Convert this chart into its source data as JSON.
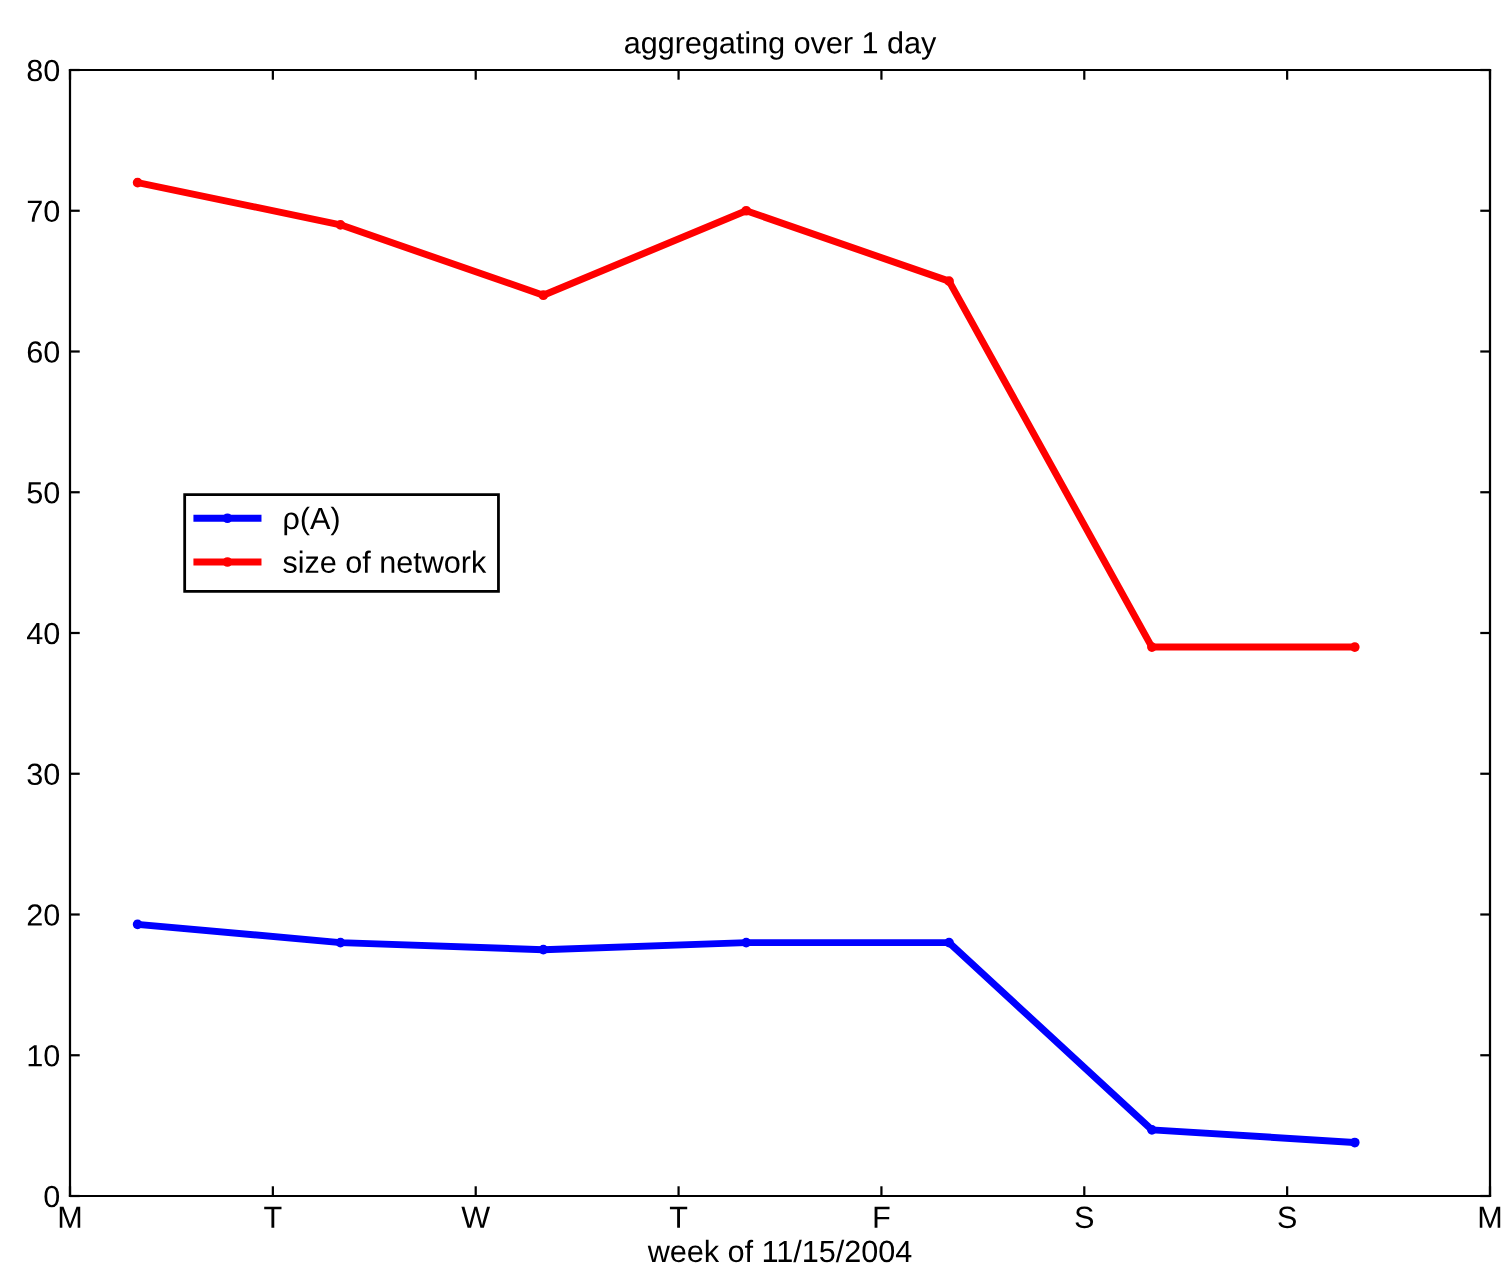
{
  "chart_data": {
    "type": "line",
    "title": "aggregating over 1 day",
    "xlabel": "week of 11/15/2004",
    "categories": [
      "M",
      "T",
      "W",
      "T",
      "F",
      "S",
      "S",
      "M"
    ],
    "series": [
      {
        "name": "ρ(A)",
        "color": "#0000ff",
        "values": [
          19.3,
          18.0,
          17.5,
          18.0,
          18.0,
          4.7,
          3.8,
          null
        ]
      },
      {
        "name": "size of network",
        "color": "#ff0000",
        "values": [
          72,
          69,
          64,
          70,
          65,
          39,
          39,
          null
        ]
      }
    ],
    "ylim": [
      0,
      80
    ],
    "yticks": [
      0,
      10,
      20,
      30,
      40,
      50,
      60,
      70,
      80
    ],
    "grid": false,
    "legend": "left",
    "marker": "circle",
    "line_style": "solid"
  }
}
